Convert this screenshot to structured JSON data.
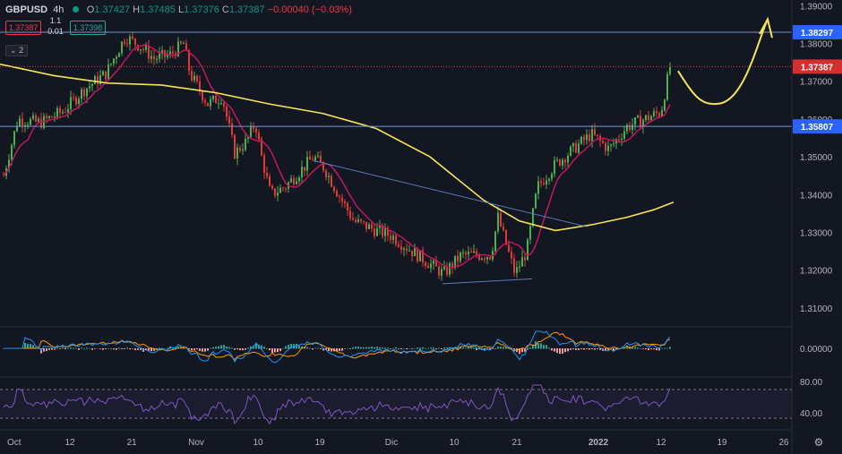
{
  "header": {
    "symbol": "GBPUSD",
    "interval": "4h",
    "open_label": "O",
    "open": "1.37427",
    "high_label": "H",
    "high": "1.37485",
    "low_label": "L",
    "low": "1.37376",
    "close_label": "C",
    "close": "1.37387",
    "change": "−0.00040 (−0.03%)"
  },
  "quote": {
    "sell": "1.37387",
    "spread_top": "1.1",
    "spread_bottom": "0.01",
    "buy": "1.37398"
  },
  "indicator_toggle": "2",
  "colors": {
    "background": "#131722",
    "up": "#4caf50",
    "down": "#e53935",
    "ma_fast": "#c2185b",
    "ma_slow": "#f3e55a",
    "trendline": "#5b7bb5",
    "hline": "#7895c8",
    "price_line": "#e53935",
    "macd": "#2196f3",
    "signal": "#ff9800",
    "rsi": "#7e57c2",
    "axis_text": "#b2b5be"
  },
  "chart_data": {
    "type": "candlestick",
    "price_axis": {
      "range": [
        1.305,
        1.3915
      ],
      "ticks": [
        "1.39000",
        "1.38000",
        "1.37000",
        "1.36000",
        "1.35000",
        "1.34000",
        "1.33000",
        "1.32000",
        "1.31000"
      ]
    },
    "horizontal_levels": [
      {
        "value": 1.38297,
        "label": "1.38297"
      },
      {
        "value": 1.35807,
        "label": "1.35807"
      }
    ],
    "last_price": {
      "value": 1.37387,
      "label": "1.37387"
    },
    "time_axis": {
      "labels": [
        "Oct",
        "12",
        "21",
        "Nov",
        "10",
        "19",
        "Dic",
        "10",
        "21",
        "2022",
        "12",
        "19",
        "26"
      ]
    },
    "projection": {
      "description": "forecast path",
      "points": [
        [
          0,
          1.3727
        ],
        [
          1,
          1.364
        ],
        [
          2,
          1.365
        ],
        [
          3,
          1.3864
        ],
        [
          4,
          1.3815
        ]
      ]
    },
    "macd_panel": {
      "zero_label": "0.00000"
    },
    "rsi_panel": {
      "levels": [
        80,
        40
      ],
      "labels": [
        "80.00",
        "40.00"
      ],
      "band": [
        70,
        30
      ]
    }
  }
}
